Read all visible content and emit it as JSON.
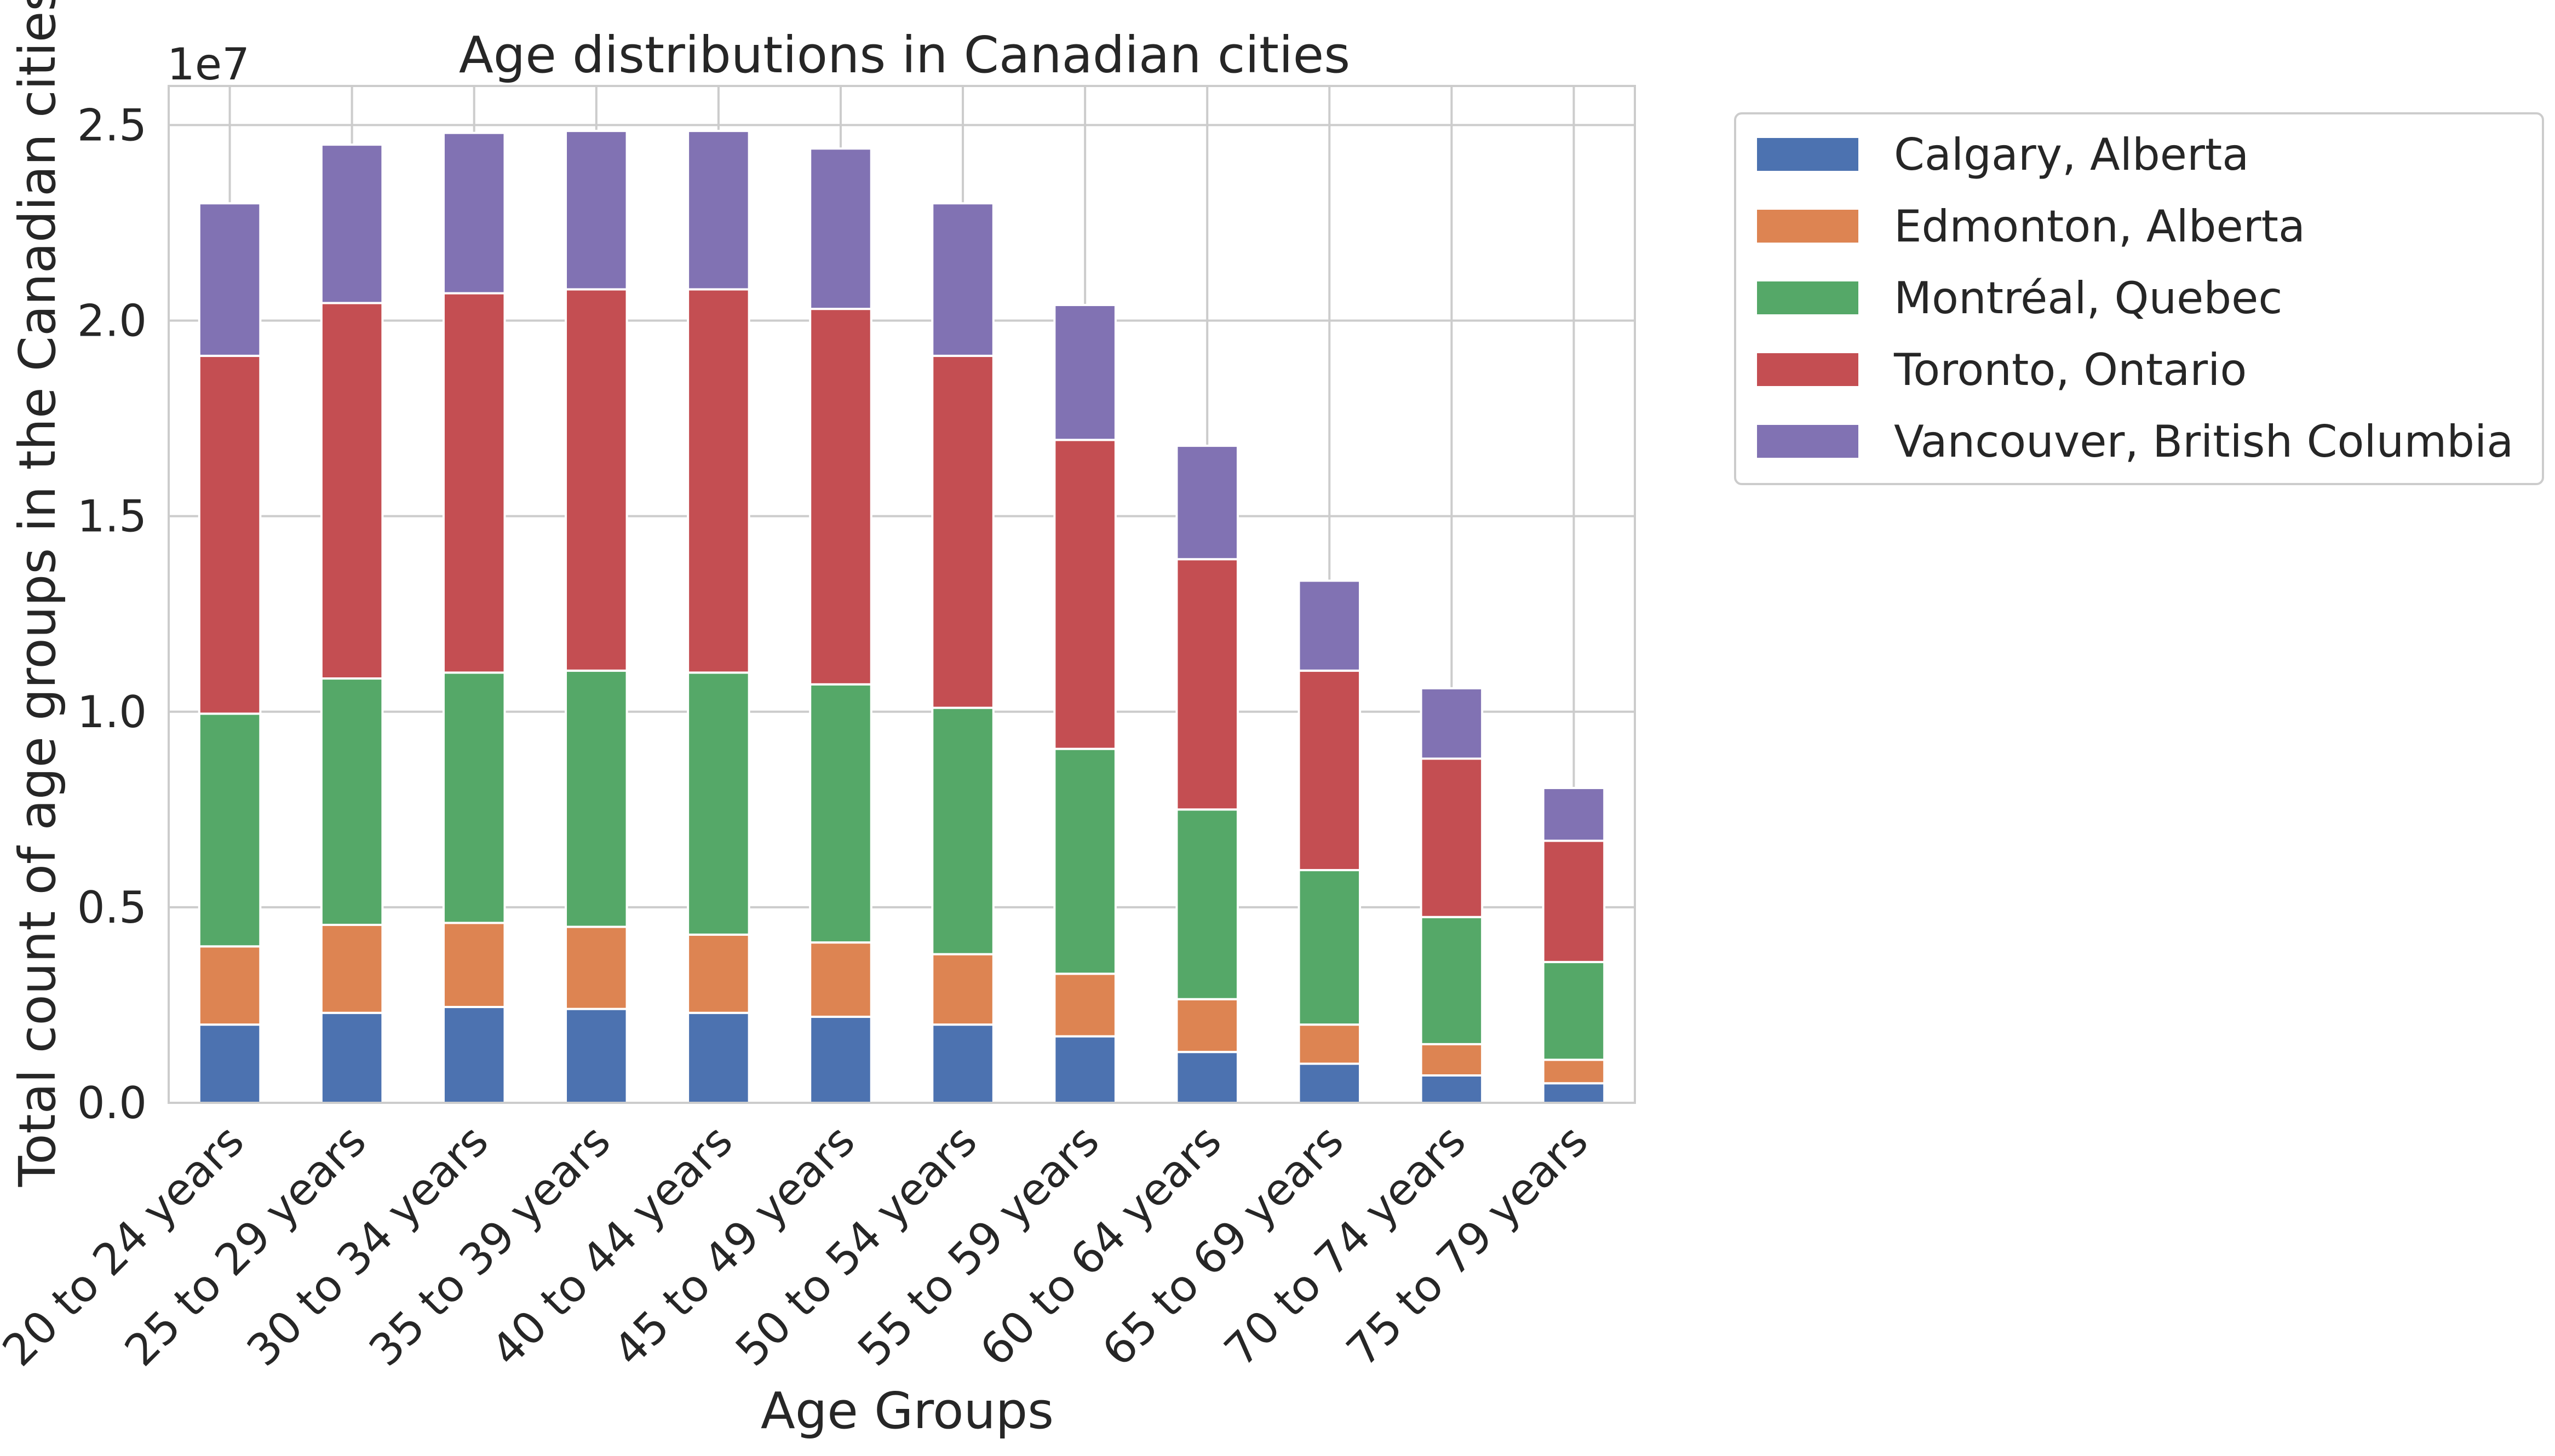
{
  "chart_data": {
    "type": "bar",
    "stacked": true,
    "title": "Age distributions in Canadian cities",
    "xlabel": "Age Groups",
    "ylabel": "Total count of age groups in the Canadian cities",
    "y_offset_label": "1e7",
    "ylim": [
      0,
      2.6
    ],
    "y_ticks": [
      "0.0",
      "0.5",
      "1.0",
      "1.5",
      "2.0",
      "2.5"
    ],
    "grid": true,
    "legend_position": "outside-top-right",
    "categories": [
      "20 to 24 years",
      "25 to 29 years",
      "30 to 34 years",
      "35 to 39 years",
      "40 to 44 years",
      "45 to 49 years",
      "50 to 54 years",
      "55 to 59 years",
      "60 to 64 years",
      "65 to 69 years",
      "70 to 74 years",
      "75 to 79 years"
    ],
    "series": [
      {
        "name": "Calgary, Alberta",
        "color": "#4c72b0",
        "values": [
          0.2,
          0.23,
          0.245,
          0.24,
          0.23,
          0.22,
          0.2,
          0.17,
          0.13,
          0.1,
          0.07,
          0.05
        ]
      },
      {
        "name": "Edmonton, Alberta",
        "color": "#dd8452",
        "values": [
          0.2,
          0.225,
          0.215,
          0.21,
          0.2,
          0.19,
          0.18,
          0.16,
          0.135,
          0.1,
          0.08,
          0.06
        ]
      },
      {
        "name": "Montréal, Quebec",
        "color": "#55a868",
        "values": [
          0.595,
          0.63,
          0.64,
          0.655,
          0.67,
          0.66,
          0.63,
          0.575,
          0.485,
          0.395,
          0.325,
          0.25
        ]
      },
      {
        "name": "Toronto, Ontario",
        "color": "#c44e52",
        "values": [
          0.915,
          0.96,
          0.97,
          0.975,
          0.98,
          0.96,
          0.9,
          0.79,
          0.64,
          0.51,
          0.405,
          0.31
        ]
      },
      {
        "name": "Vancouver, British Columbia",
        "color": "#8172b3",
        "values": [
          0.39,
          0.405,
          0.41,
          0.405,
          0.405,
          0.41,
          0.39,
          0.345,
          0.29,
          0.23,
          0.18,
          0.135
        ]
      }
    ]
  }
}
